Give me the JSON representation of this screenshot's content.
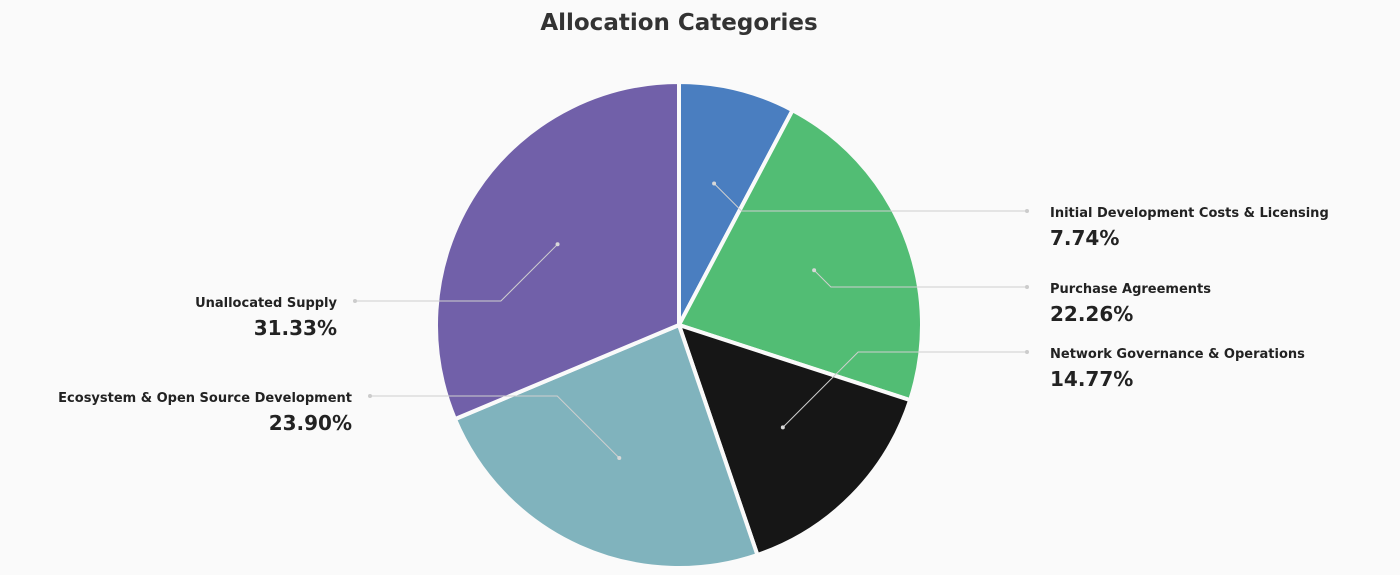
{
  "chart_data": {
    "type": "pie",
    "title": "Allocation Categories",
    "categories": [
      "Initial Development Costs & Licensing",
      "Purchase Agreements",
      "Network Governance & Operations",
      "Ecosystem & Open Source Development",
      "Unallocated Supply"
    ],
    "values": [
      7.74,
      22.26,
      14.77,
      23.9,
      31.33
    ],
    "value_labels": [
      "7.74%",
      "22.26%",
      "14.77%",
      "23.90%",
      "31.33%"
    ],
    "colors": [
      "#4a7ec0",
      "#52bd74",
      "#161616",
      "#80b3bd",
      "#7160a9"
    ]
  }
}
